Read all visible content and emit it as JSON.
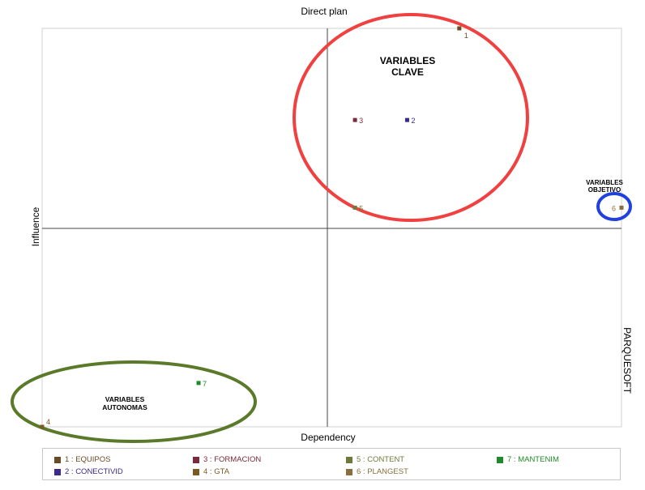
{
  "chart_data": {
    "type": "scatter",
    "title": "Direct plan",
    "xlabel": "Dependency",
    "ylabel": "Influence",
    "side_label": "PARQUESOFT",
    "xlim": [
      0,
      1
    ],
    "ylim": [
      0,
      1
    ],
    "points": [
      {
        "id": "1",
        "name": "EQUIPOS",
        "x": 0.72,
        "y": 1.0,
        "color": "#6b4a26"
      },
      {
        "id": "2",
        "name": "CONECTIVID",
        "x": 0.63,
        "y": 0.77,
        "color": "#3b2a8c"
      },
      {
        "id": "3",
        "name": "FORMACION",
        "x": 0.54,
        "y": 0.77,
        "color": "#7a2a3a"
      },
      {
        "id": "4",
        "name": "GTA",
        "x": 0.0,
        "y": 0.0,
        "color": "#7a5a20"
      },
      {
        "id": "5",
        "name": "CONTENT",
        "x": 0.54,
        "y": 0.55,
        "color": "#6e7a3a"
      },
      {
        "id": "6",
        "name": "PLANGEST",
        "x": 1.0,
        "y": 0.55,
        "color": "#8a6e3e"
      },
      {
        "id": "7",
        "name": "MANTENIM",
        "x": 0.27,
        "y": 0.11,
        "color": "#1f8a2a"
      }
    ],
    "annotations": [
      {
        "text": "VARIABLES\nCLAVE"
      },
      {
        "text": "VARIABLES\nOBJETIVO"
      },
      {
        "text": "VARIABLES\nAUTONOMAS"
      }
    ],
    "legend": [
      {
        "label": "1 : EQUIPOS",
        "color": "#6b4a26",
        "text_color": "#6b4a26"
      },
      {
        "label": "2 : CONECTIVID",
        "color": "#3b2a8c",
        "text_color": "#3b2a8c"
      },
      {
        "label": "3 : FORMACION",
        "color": "#7a2a3a",
        "text_color": "#7a2a3a"
      },
      {
        "label": "4 : GTA",
        "color": "#7a5a20",
        "text_color": "#7a5a20"
      },
      {
        "label": "5 : CONTENT",
        "color": "#6e7a3a",
        "text_color": "#6e7a3a"
      },
      {
        "label": "6 : PLANGEST",
        "color": "#8a6e3e",
        "text_color": "#8a6e3e"
      },
      {
        "label": "7 : MANTENIM",
        "color": "#1f8a2a",
        "text_color": "#1f8a2a"
      }
    ],
    "highlight_colors": {
      "clave": "#f04040",
      "objetivo": "#2040e0",
      "autonomas": "#5a7a2a"
    }
  }
}
